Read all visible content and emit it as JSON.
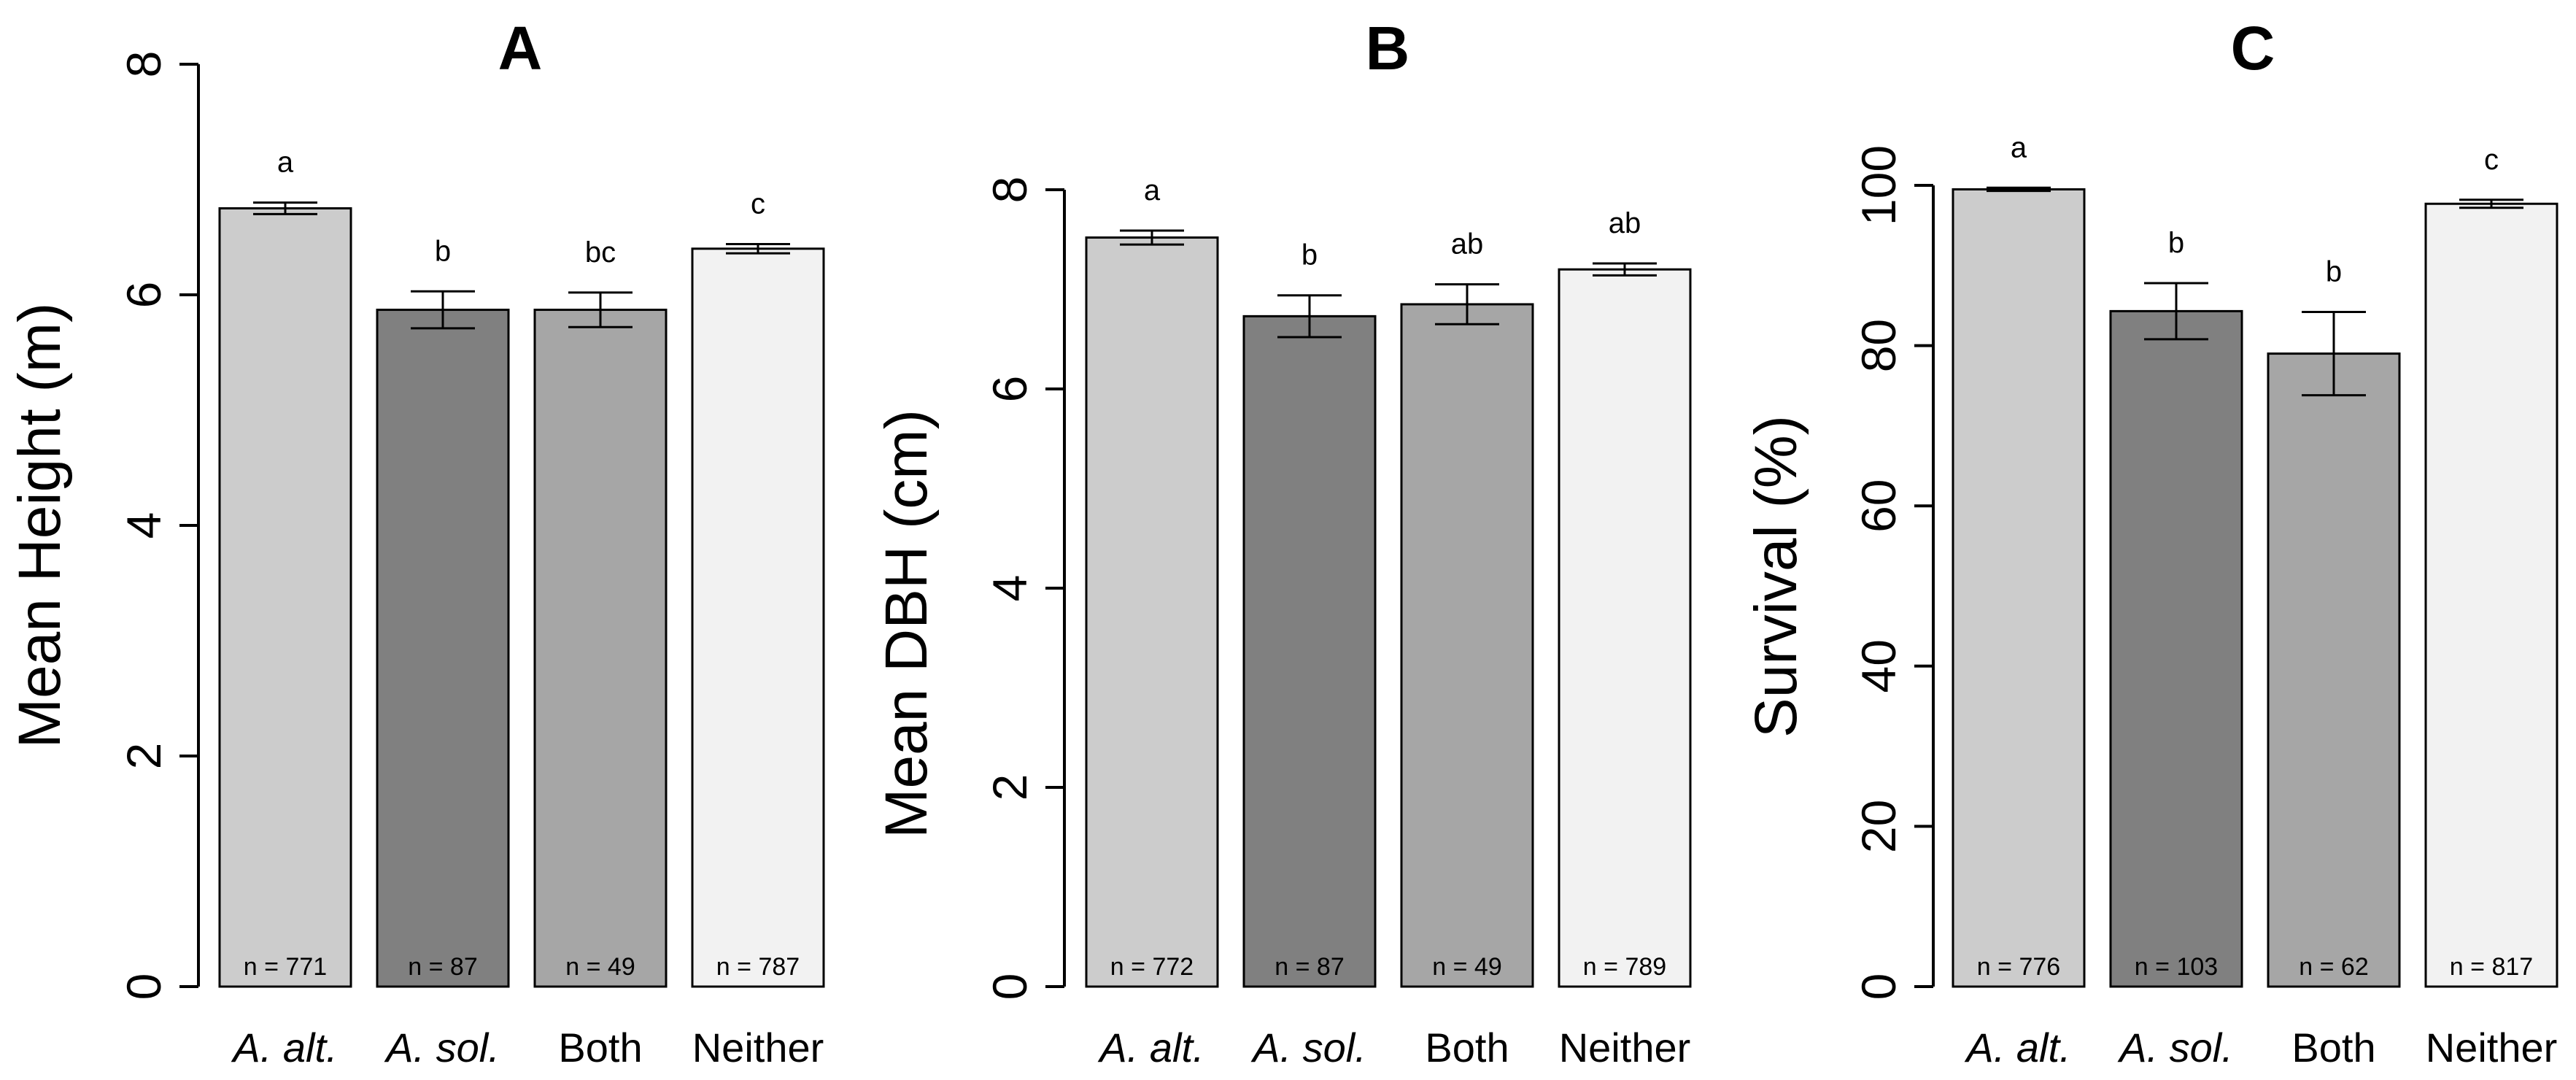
{
  "chart_data": [
    {
      "type": "bar",
      "panel": "A",
      "title": "A",
      "xlabel": "",
      "ylabel": "Mean Height (m)",
      "ylim": [
        0,
        8
      ],
      "yticks": [
        0,
        2,
        4,
        6,
        8
      ],
      "grid": false,
      "categories": [
        "A. alt.",
        "A. sol.",
        "Both",
        "Neither"
      ],
      "italic_categories": [
        true,
        true,
        false,
        false
      ],
      "values": [
        6.75,
        5.87,
        5.87,
        6.4
      ],
      "error": [
        0.05,
        0.16,
        0.15,
        0.04
      ],
      "letters": [
        "a",
        "b",
        "bc",
        "c"
      ],
      "n_labels": [
        "n = 771",
        "n = 87",
        "n = 49",
        "n = 787"
      ],
      "colors": [
        "#cccccc",
        "#808080",
        "#a6a6a6",
        "#f2f2f2"
      ]
    },
    {
      "type": "bar",
      "panel": "B",
      "title": "B",
      "xlabel": "",
      "ylabel": "Mean DBH (cm)",
      "ylim": [
        0,
        8
      ],
      "yticks": [
        0,
        2,
        4,
        6,
        8
      ],
      "grid": false,
      "categories": [
        "A. alt.",
        "A. sol.",
        "Both",
        "Neither"
      ],
      "italic_categories": [
        true,
        true,
        false,
        false
      ],
      "values": [
        7.52,
        6.73,
        6.85,
        7.2
      ],
      "error": [
        0.07,
        0.21,
        0.2,
        0.06
      ],
      "letters": [
        "a",
        "b",
        "ab",
        "ab"
      ],
      "n_labels": [
        "n = 772",
        "n = 87",
        "n = 49",
        "n = 789"
      ],
      "colors": [
        "#cccccc",
        "#808080",
        "#a6a6a6",
        "#f2f2f2"
      ]
    },
    {
      "type": "bar",
      "panel": "C",
      "title": "C",
      "xlabel": "",
      "ylabel": "Survival (%)",
      "ylim": [
        0,
        100
      ],
      "yticks": [
        0,
        20,
        40,
        60,
        80,
        100
      ],
      "grid": false,
      "categories": [
        "A. alt.",
        "A. sol.",
        "Both",
        "Neither"
      ],
      "italic_categories": [
        true,
        true,
        false,
        false
      ],
      "values": [
        99.5,
        84.3,
        79.0,
        97.7
      ],
      "error": [
        0.2,
        3.5,
        5.2,
        0.5
      ],
      "letters": [
        "a",
        "b",
        "b",
        "c"
      ],
      "n_labels": [
        "n = 776",
        "n = 103",
        "n = 62",
        "n = 817"
      ],
      "colors": [
        "#cccccc",
        "#808080",
        "#a6a6a6",
        "#f2f2f2"
      ]
    }
  ]
}
